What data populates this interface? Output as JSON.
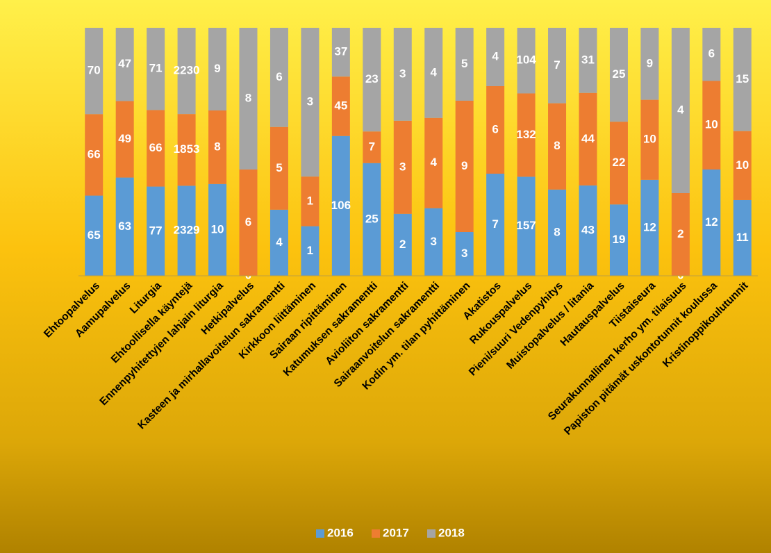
{
  "chart_data": {
    "type": "bar",
    "stacked": "percent",
    "categories": [
      "Ehtoopalvelus",
      "Aamupalvelus",
      "Liturgia",
      "Ehtoollisella käyntejä",
      "Ennenpyhitettyjen lahjain liturgia",
      "Hetkipalvelus",
      "Kasteen ja mirhallavoitelun sakramentti",
      "Kirkkoon liittäminen",
      "Sairaan ripittäminen",
      "Katumuksen sakramentti",
      "Avioliiton sakramentti",
      "Sairaanvoitelun sakramentti",
      "Kodin ym. tilan pyhittäminen",
      "Akatistos",
      "Rukouspalvelus",
      "Pieni/suuri Vedenpyhitys",
      "Muistopalvelus / litania",
      "Hautauspalvelus",
      "Tiistaiseura",
      "Seurakunnallinen kerho ym. tilaisuus",
      "Papiston pitämät uskontotunnit koulussa",
      "Kristinoppikoulutunnit"
    ],
    "series": [
      {
        "name": "2016",
        "color": "#5b9bd5",
        "values": [
          65,
          63,
          77,
          2329,
          10,
          0,
          4,
          1,
          106,
          25,
          2,
          3,
          3,
          7,
          157,
          8,
          43,
          19,
          12,
          0,
          12,
          11
        ]
      },
      {
        "name": "2017",
        "color": "#ed7d31",
        "values": [
          66,
          49,
          66,
          1853,
          8,
          6,
          5,
          1,
          45,
          7,
          3,
          4,
          9,
          6,
          132,
          8,
          44,
          22,
          10,
          2,
          10,
          10
        ]
      },
      {
        "name": "2018",
        "color": "#a5a5a5",
        "values": [
          70,
          47,
          71,
          2230,
          9,
          8,
          6,
          3,
          37,
          23,
          3,
          4,
          5,
          4,
          104,
          7,
          31,
          25,
          9,
          4,
          6,
          15
        ]
      }
    ],
    "legend": "bottom"
  }
}
